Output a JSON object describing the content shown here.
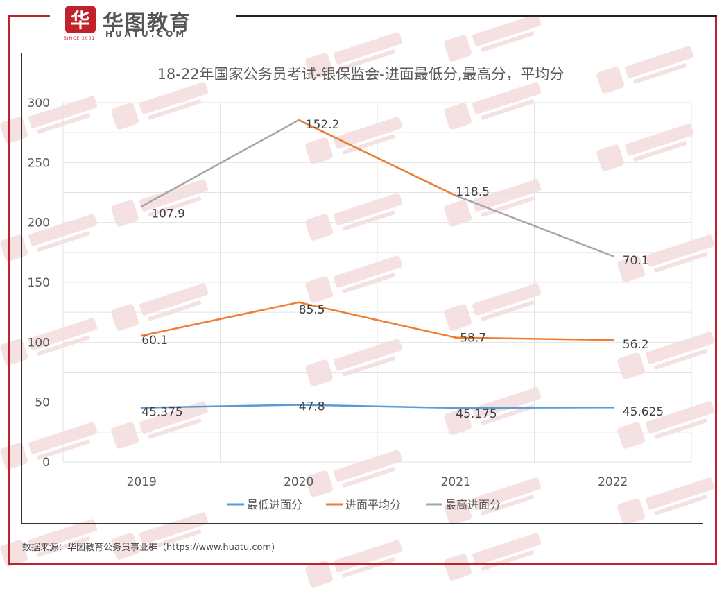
{
  "logo": {
    "mark": "华",
    "name": "华图教育",
    "domain": "HUATU.COM",
    "since": "SINCE 2001"
  },
  "source_text": "数据来源：华图教育公务员事业群（https://www.huatu.com)",
  "colors": {
    "frame": "#c0212a",
    "series_low": "#5b9bd5",
    "series_avg": "#ed7d31",
    "series_high": "#a5a5a5"
  },
  "chart_data": {
    "type": "line",
    "title": "18-22年国家公务员考试-银保监会-进面最低分,最高分，平均分",
    "categories": [
      "2019",
      "2020",
      "2021",
      "2022"
    ],
    "ylim": [
      0,
      300
    ],
    "yticks": [
      0,
      50,
      100,
      150,
      200,
      250,
      300
    ],
    "grid": true,
    "legend_position": "bottom",
    "series": [
      {
        "name": "最低进面分",
        "values": [
          45.375,
          47.8,
          45.175,
          45.625
        ],
        "labels": [
          "45.375",
          "47.8",
          "45.175",
          "45.625"
        ]
      },
      {
        "name": "进面平均分",
        "values": [
          105.475,
          133.3,
          103.875,
          101.825
        ],
        "labels": [
          "60.1",
          "85.5",
          "58.7",
          "56.2"
        ]
      },
      {
        "name": "最高进面分",
        "values": [
          213.375,
          285.5,
          222.375,
          171.925
        ],
        "labels": [
          "107.9",
          "152.2",
          "118.5",
          "70.1"
        ]
      }
    ]
  }
}
